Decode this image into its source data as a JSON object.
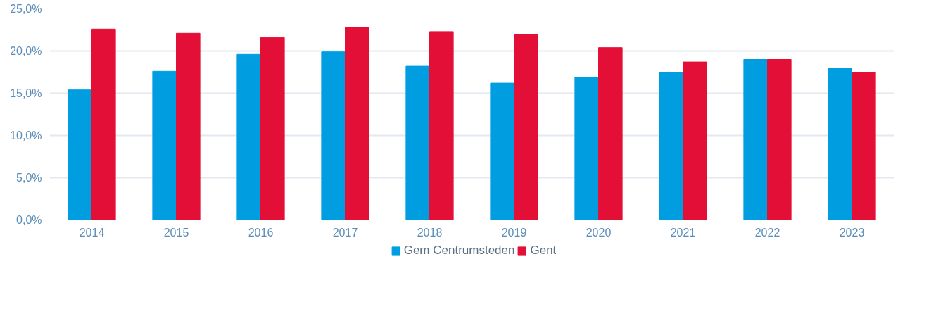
{
  "chart_data": {
    "type": "bar",
    "categories": [
      "2014",
      "2015",
      "2016",
      "2017",
      "2018",
      "2019",
      "2020",
      "2021",
      "2022",
      "2023"
    ],
    "series": [
      {
        "name": "Gem Centrumsteden",
        "color": "#009ee0",
        "values": [
          15.4,
          17.6,
          19.6,
          19.9,
          18.2,
          16.2,
          16.9,
          17.5,
          19.0,
          18.0
        ]
      },
      {
        "name": "Gent",
        "color": "#e30f37",
        "values": [
          22.6,
          22.1,
          21.6,
          22.8,
          22.3,
          22.0,
          20.4,
          18.7,
          19.0,
          17.5
        ]
      }
    ],
    "ylim": [
      0,
      25
    ],
    "yticks": [
      {
        "value": 0,
        "label": "0,0%"
      },
      {
        "value": 5,
        "label": "5,0%"
      },
      {
        "value": 10,
        "label": "10,0%"
      },
      {
        "value": 15,
        "label": "15,0%"
      },
      {
        "value": 20,
        "label": "20,0%"
      },
      {
        "value": 25,
        "label": "25,0%"
      }
    ],
    "grid": "y",
    "legend": "bottom"
  }
}
